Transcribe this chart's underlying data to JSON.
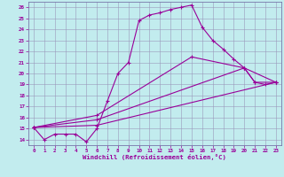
{
  "xlabel": "Windchill (Refroidissement éolien,°C)",
  "xlim": [
    -0.5,
    23.5
  ],
  "ylim": [
    13.5,
    26.5
  ],
  "yticks": [
    14,
    15,
    16,
    17,
    18,
    19,
    20,
    21,
    22,
    23,
    24,
    25,
    26
  ],
  "xticks": [
    0,
    1,
    2,
    3,
    4,
    5,
    6,
    7,
    8,
    9,
    10,
    11,
    12,
    13,
    14,
    15,
    16,
    17,
    18,
    19,
    20,
    21,
    22,
    23
  ],
  "bg_color": "#c2ecee",
  "line_color": "#990099",
  "grid_color": "#9999bb",
  "line1_x": [
    0,
    1,
    2,
    3,
    4,
    5,
    6,
    7,
    8,
    9,
    10,
    11,
    12,
    13,
    14,
    15,
    16,
    17,
    18,
    19,
    20,
    21,
    22,
    23
  ],
  "line1_y": [
    15.1,
    14.0,
    14.5,
    14.5,
    14.5,
    13.8,
    15.0,
    17.5,
    20.0,
    21.0,
    24.8,
    25.3,
    25.5,
    25.8,
    26.0,
    26.2,
    24.2,
    23.0,
    22.2,
    21.3,
    20.5,
    19.2,
    19.0,
    19.2
  ],
  "line2_x": [
    0,
    6,
    15,
    20,
    23
  ],
  "line2_y": [
    15.1,
    16.2,
    21.5,
    20.5,
    19.2
  ],
  "line3_x": [
    0,
    6,
    20,
    21,
    23
  ],
  "line3_y": [
    15.1,
    15.8,
    20.5,
    19.2,
    19.2
  ],
  "line4_x": [
    0,
    6,
    23
  ],
  "line4_y": [
    15.1,
    15.3,
    19.2
  ],
  "marker": "+"
}
